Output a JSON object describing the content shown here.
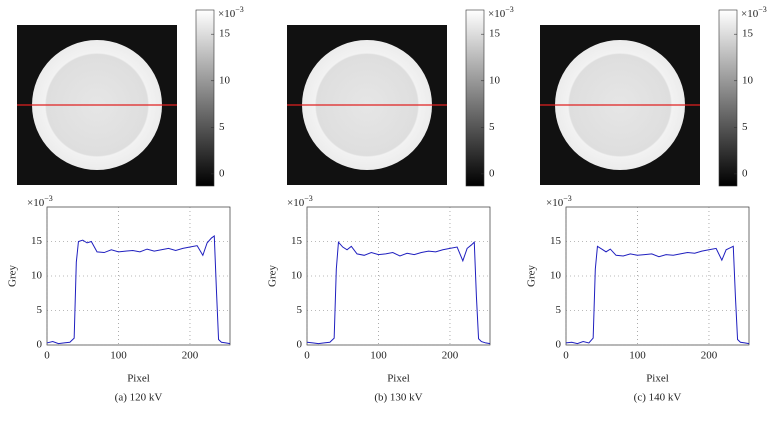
{
  "chart_data": [
    {
      "type": "line",
      "caption": "(a) 120 kV",
      "xlabel": "Pixel",
      "ylabel": "Grey",
      "multiplier": "×10",
      "multiplier_exp": "−3",
      "xlim": [
        0,
        256
      ],
      "xticks": [
        0,
        100,
        200
      ],
      "ylim": [
        0,
        20
      ],
      "yticks": [
        0,
        5,
        10,
        15
      ],
      "grid": true,
      "colorbar": {
        "lim": [
          -1.3,
          17.6
        ],
        "ticks": [
          0,
          5,
          10,
          15
        ],
        "multiplier": "×10",
        "multiplier_exp": "−3"
      },
      "x": [
        0,
        8,
        16,
        24,
        32,
        38,
        41,
        44,
        50,
        56,
        62,
        70,
        80,
        90,
        100,
        110,
        120,
        130,
        140,
        150,
        160,
        170,
        180,
        190,
        200,
        210,
        218,
        224,
        230,
        234,
        237,
        240,
        244,
        250,
        256
      ],
      "series": [
        {
          "name": "Grey",
          "color": "#1f1fbf",
          "values": [
            0.3,
            0.5,
            0.2,
            0.3,
            0.4,
            1,
            12,
            15,
            15.2,
            14.8,
            15,
            13.5,
            13.4,
            13.8,
            13.5,
            13.6,
            13.7,
            13.5,
            13.9,
            13.6,
            13.8,
            14,
            13.7,
            14,
            14.2,
            14.4,
            13,
            14.8,
            15.5,
            15.8,
            8,
            0.8,
            0.4,
            0.3,
            0.2
          ]
        }
      ]
    },
    {
      "type": "line",
      "caption": "(b) 130 kV",
      "xlabel": "Pixel",
      "ylabel": "Grey",
      "multiplier": "×10",
      "multiplier_exp": "−3",
      "xlim": [
        0,
        256
      ],
      "xticks": [
        0,
        100,
        200
      ],
      "ylim": [
        0,
        20
      ],
      "yticks": [
        0,
        5,
        10,
        15
      ],
      "grid": true,
      "colorbar": {
        "lim": [
          -1.3,
          17.6
        ],
        "ticks": [
          0,
          5,
          10,
          15
        ],
        "multiplier": "×10",
        "multiplier_exp": "−3"
      },
      "x": [
        0,
        8,
        16,
        24,
        32,
        38,
        41,
        44,
        50,
        56,
        62,
        70,
        80,
        90,
        100,
        110,
        120,
        130,
        140,
        150,
        160,
        170,
        180,
        190,
        200,
        210,
        218,
        224,
        230,
        234,
        237,
        240,
        244,
        250,
        256
      ],
      "series": [
        {
          "name": "Grey",
          "color": "#1f1fbf",
          "values": [
            0.4,
            0.3,
            0.2,
            0.3,
            0.4,
            1,
            11,
            14.9,
            14.2,
            13.8,
            14.3,
            13.2,
            13,
            13.4,
            13.1,
            13.2,
            13.4,
            12.9,
            13.3,
            13.1,
            13.4,
            13.6,
            13.5,
            13.8,
            14,
            14.2,
            12.2,
            14,
            14.5,
            14.9,
            7,
            0.9,
            0.5,
            0.3,
            0.2
          ]
        }
      ]
    },
    {
      "type": "line",
      "caption": "(c) 140 kV",
      "xlabel": "Pixel",
      "ylabel": "Grey",
      "multiplier": "×10",
      "multiplier_exp": "−3",
      "xlim": [
        0,
        256
      ],
      "xticks": [
        0,
        100,
        200
      ],
      "ylim": [
        0,
        20
      ],
      "yticks": [
        0,
        5,
        10,
        15
      ],
      "grid": true,
      "colorbar": {
        "lim": [
          -1.3,
          17.6
        ],
        "ticks": [
          0,
          5,
          10,
          15
        ],
        "multiplier": "×10",
        "multiplier_exp": "−3"
      },
      "x": [
        0,
        8,
        16,
        24,
        32,
        38,
        41,
        44,
        50,
        56,
        62,
        70,
        80,
        90,
        100,
        110,
        120,
        130,
        140,
        150,
        160,
        170,
        180,
        190,
        200,
        210,
        218,
        224,
        230,
        234,
        237,
        240,
        244,
        250,
        256
      ],
      "series": [
        {
          "name": "Grey",
          "color": "#1f1fbf",
          "values": [
            0.3,
            0.4,
            0.2,
            0.5,
            0.3,
            1,
            11,
            14.3,
            13.9,
            13.5,
            13.9,
            13,
            12.9,
            13.2,
            13,
            13.1,
            13.2,
            12.8,
            13.1,
            13,
            13.2,
            13.4,
            13.3,
            13.6,
            13.8,
            14,
            12.3,
            13.8,
            14.1,
            14.3,
            7,
            0.8,
            0.4,
            0.3,
            0.2
          ]
        }
      ]
    }
  ]
}
